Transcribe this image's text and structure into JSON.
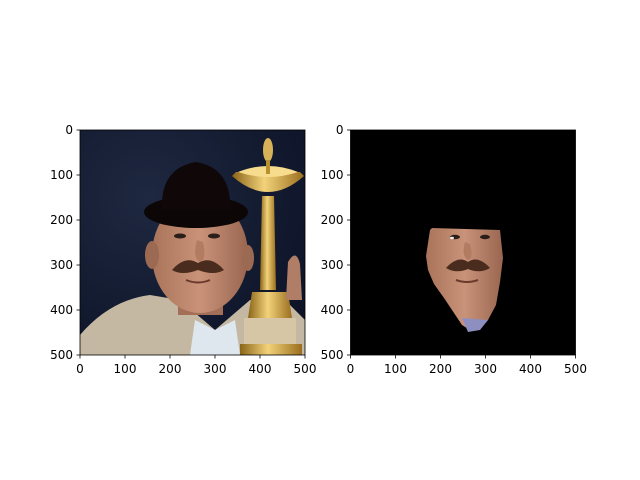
{
  "chart_data": [
    {
      "type": "image",
      "content": "photo of man with mustache wearing a black bowler hat, holding a gold trophy",
      "xlim": [
        0,
        500
      ],
      "ylim": [
        500,
        0
      ],
      "xticks": [
        "0",
        "100",
        "200",
        "300",
        "400",
        "500"
      ],
      "yticks": [
        "0",
        "100",
        "200",
        "300",
        "400",
        "500"
      ],
      "grid": false
    },
    {
      "type": "image",
      "content": "segmented face region on black background",
      "xlim": [
        0,
        500
      ],
      "ylim": [
        500,
        0
      ],
      "xticks": [
        "0",
        "100",
        "200",
        "300",
        "400",
        "500"
      ],
      "yticks": [
        "0",
        "100",
        "200",
        "300",
        "400",
        "500"
      ],
      "grid": false
    }
  ]
}
